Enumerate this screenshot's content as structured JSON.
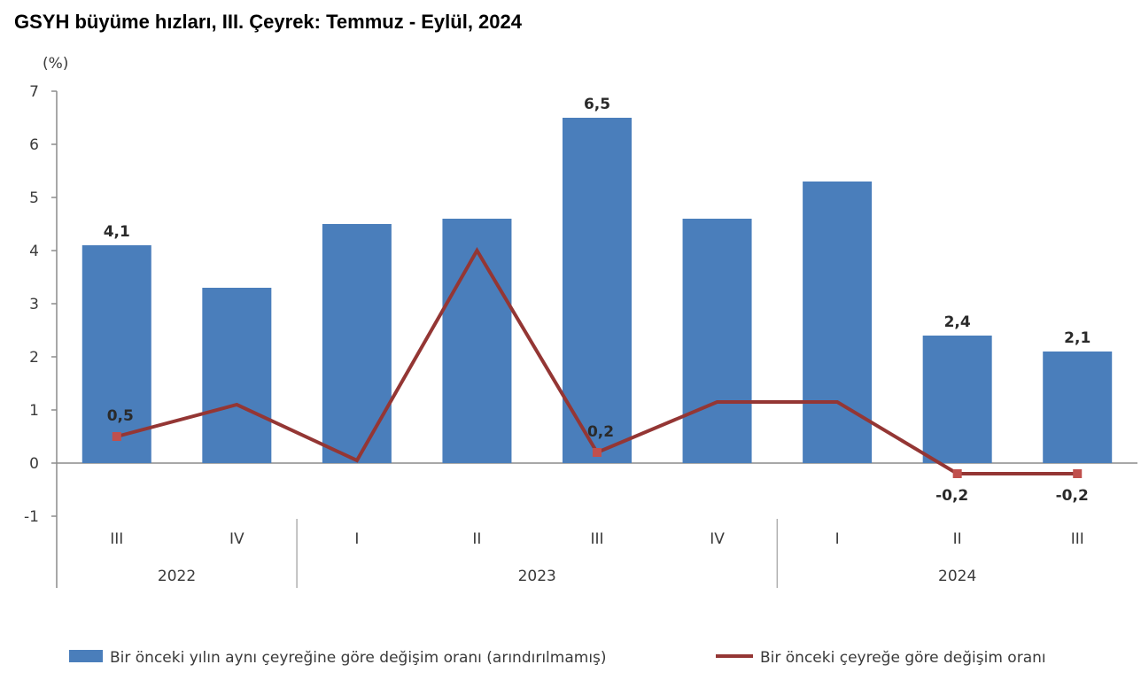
{
  "title": "GSYH büyüme hızları, III. Çeyrek: Temmuz - Eylül, 2024",
  "chart_data": {
    "type": "bar",
    "title": "GSYH büyüme hızları, III. Çeyrek: Temmuz - Eylül, 2024",
    "ylabel": "(%)",
    "xlabel": "",
    "ylim": [
      -1,
      7
    ],
    "yticks": [
      7,
      6,
      5,
      4,
      3,
      2,
      1,
      0,
      -1
    ],
    "categories": [
      "III",
      "IV",
      "I",
      "II",
      "III",
      "IV",
      "I",
      "II",
      "III"
    ],
    "year_groups": [
      {
        "label": "2022",
        "start": 0,
        "end": 1
      },
      {
        "label": "2023",
        "start": 2,
        "end": 5
      },
      {
        "label": "2024",
        "start": 6,
        "end": 8
      }
    ],
    "series": [
      {
        "name": "Bir önceki yılın aynı çeyreğine göre değişim oranı (arındırılmamış)",
        "kind": "bar",
        "color": "#4a7ebb",
        "values": [
          4.1,
          3.3,
          4.5,
          4.6,
          6.5,
          4.6,
          5.3,
          2.4,
          2.1
        ],
        "labels": [
          "4,1",
          "",
          "",
          "",
          "6,5",
          "",
          "",
          "2,4",
          "2,1"
        ]
      },
      {
        "name": "Bir önceki çeyreğe göre değişim oranı",
        "kind": "line",
        "color": "#943634",
        "values": [
          0.5,
          1.1,
          0.05,
          4.0,
          0.2,
          1.15,
          1.15,
          -0.2,
          -0.2
        ],
        "labels": [
          "0,5",
          "",
          "",
          "",
          "0,2",
          "",
          "",
          "-0,2",
          "-0,2"
        ]
      }
    ],
    "grid": false,
    "legend_position": "bottom"
  }
}
